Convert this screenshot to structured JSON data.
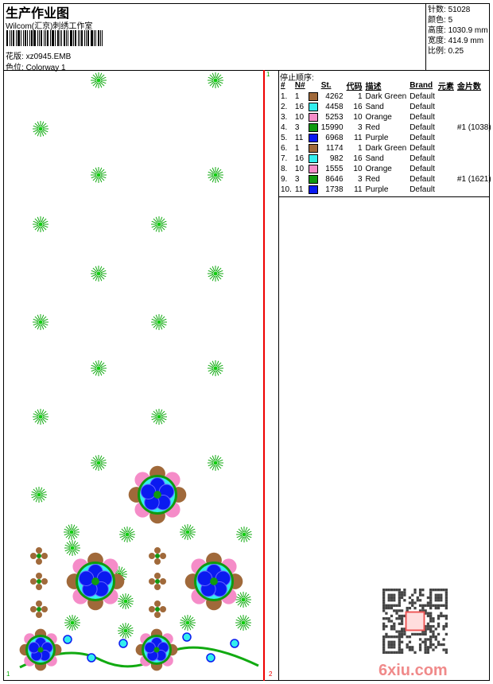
{
  "header": {
    "title": "生产作业图",
    "studio": "Wilcom(汇京)刺绣工作室",
    "design_label": "花版:",
    "design_file": "xz0945.EMB",
    "colorway_label": "色位:",
    "colorway": "Colorway 1"
  },
  "info": [
    {
      "label": "针数:",
      "value": "51028"
    },
    {
      "label": "颜色:",
      "value": "5"
    },
    {
      "label": "高度:",
      "value": "1030.9 mm"
    },
    {
      "label": "宽度:",
      "value": "414.9 mm"
    },
    {
      "label": "比例:",
      "value": "0.25"
    }
  ],
  "markers": {
    "top": "1",
    "bottom_left": "1",
    "bottom_right": "2"
  },
  "stop_sequence": {
    "title": "停止顺序:",
    "columns": [
      "#",
      "N#",
      "",
      "St.",
      "代码",
      "描述",
      "Brand",
      "元素",
      "金片数"
    ],
    "rows": [
      {
        "idx": "1.",
        "n": "1",
        "color": "#a0693a",
        "st": "4262",
        "code": "1",
        "desc": "Dark Green",
        "brand": "Default",
        "elem": "",
        "seq": ""
      },
      {
        "idx": "2.",
        "n": "16",
        "color": "#33eeee",
        "st": "4458",
        "code": "16",
        "desc": "Sand",
        "brand": "Default",
        "elem": "",
        "seq": ""
      },
      {
        "idx": "3.",
        "n": "10",
        "color": "#f58cc8",
        "st": "5253",
        "code": "10",
        "desc": "Orange",
        "brand": "Default",
        "elem": "",
        "seq": ""
      },
      {
        "idx": "4.",
        "n": "3",
        "color": "#109a10",
        "st": "15990",
        "code": "3",
        "desc": "Red",
        "brand": "Default",
        "elem": "",
        "seq": "#1 (1038)"
      },
      {
        "idx": "5.",
        "n": "11",
        "color": "#0a1af0",
        "st": "6968",
        "code": "11",
        "desc": "Purple",
        "brand": "Default",
        "elem": "",
        "seq": ""
      },
      {
        "idx": "6.",
        "n": "1",
        "color": "#a0693a",
        "st": "1174",
        "code": "1",
        "desc": "Dark Green",
        "brand": "Default",
        "elem": "",
        "seq": ""
      },
      {
        "idx": "7.",
        "n": "16",
        "color": "#33eeee",
        "st": "982",
        "code": "16",
        "desc": "Sand",
        "brand": "Default",
        "elem": "",
        "seq": ""
      },
      {
        "idx": "8.",
        "n": "10",
        "color": "#f58cc8",
        "st": "1555",
        "code": "10",
        "desc": "Orange",
        "brand": "Default",
        "elem": "",
        "seq": ""
      },
      {
        "idx": "9.",
        "n": "3",
        "color": "#109a10",
        "st": "8646",
        "code": "3",
        "desc": "Red",
        "brand": "Default",
        "elem": "",
        "seq": "#1 (1621)"
      },
      {
        "idx": "10.",
        "n": "11",
        "color": "#0a1af0",
        "st": "1738",
        "code": "11",
        "desc": "Purple",
        "brand": "Default",
        "elem": "",
        "seq": ""
      }
    ]
  },
  "watermark": {
    "seal": "以图版",
    "site": "6xiu.com"
  }
}
